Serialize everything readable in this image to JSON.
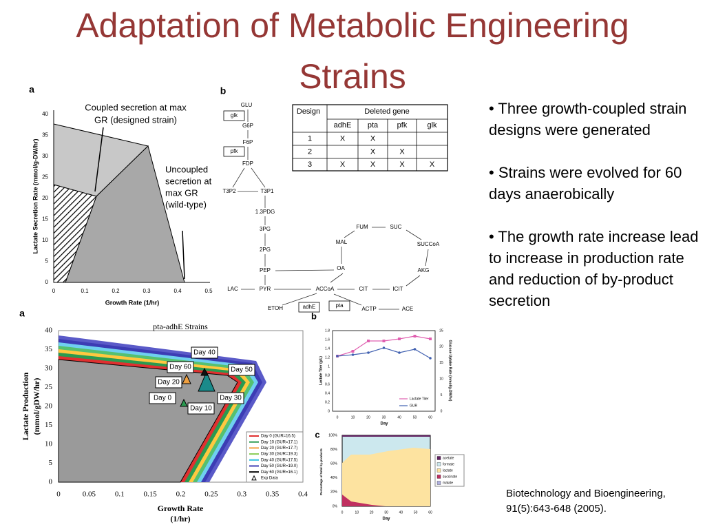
{
  "title": "Adaptation of Metabolic Engineering Strains",
  "bullets": [
    "Three growth-coupled strain designs were generated",
    "Strains were evolved for 60 days anaerobically",
    "The growth rate increase lead to increase in production rate and reduction of by-product secretion"
  ],
  "citation": "Biotechnology and Bioengineering, 91(5):643-648 (2005).",
  "fig_top_a": {
    "label": "a",
    "annotation_coupled": [
      "Coupled secretion at max",
      "GR (designed strain)"
    ],
    "annotation_uncoupled": [
      "Uncoupled",
      "secretion at",
      "max GR",
      "(wild-type)"
    ],
    "xlabel": "Growth Rate (1/hr)",
    "ylabel": "Lactate Secretion Rate (mmol/g-DW/hr)",
    "xticks": [
      0,
      0.1,
      0.2,
      0.3,
      0.4,
      0.5
    ],
    "yticks": [
      0,
      5,
      10,
      15,
      20,
      25,
      30,
      35,
      40
    ]
  },
  "fig_top_b": {
    "label": "b",
    "nodes": [
      "GLU",
      "glk",
      "G6P",
      "F6P",
      "pfk",
      "FDP",
      "T3P2",
      "T3P1",
      "1.3PDG",
      "3PG",
      "2PG",
      "PEP",
      "PYR",
      "LAC",
      "ACCoA",
      "ETOH",
      "adhE",
      "pta",
      "ACTP",
      "ACE",
      "OA",
      "MAL",
      "FUM",
      "SUC",
      "SUCCoA",
      "AKG",
      "ICIT",
      "CIT"
    ]
  },
  "table": {
    "header": [
      "Design",
      "Deleted gene"
    ],
    "genes": [
      "adhE",
      "pta",
      "pfk",
      "glk"
    ],
    "rows": [
      [
        "1",
        "X",
        "X",
        null,
        null
      ],
      [
        "2",
        null,
        "X",
        "X",
        null
      ],
      [
        "3",
        "X",
        "X",
        "X",
        "X"
      ]
    ]
  },
  "fig_bottom_a": {
    "label": "a",
    "title": "pta-adhE Strains",
    "xlabel": [
      "Growth Rate",
      "(1/hr)"
    ],
    "ylabel": [
      "Lactate Production",
      "(mmol/gDW/hr)"
    ],
    "xticks": [
      0,
      0.05,
      0.1,
      0.15,
      0.2,
      0.25,
      0.3,
      0.35,
      0.4
    ],
    "yticks": [
      0,
      5,
      10,
      15,
      20,
      25,
      30,
      35,
      40
    ],
    "day_labels": [
      "Day 40",
      "Day 60",
      "Day 50",
      "Day 20",
      "Day 0",
      "Day 30",
      "Day 10"
    ],
    "legend": [
      "Day 0 (GUR=16.5)",
      "Day 10 (GUR=17.1)",
      "Day 20 (GUR=17.7)",
      "Day 30 (GUR=19.3)",
      "Day 40 (GUR=17.5)",
      "Day 50 (GUR=19.0)",
      "Day 60 (GUR=16.1)",
      "Exp Data"
    ]
  },
  "fig_bottom_b": {
    "label": "b",
    "ylabel_left": "Lactate Titer (g/L)",
    "ylabel_right": "Glucose Uptake Rate (mmol/g-DW/hr)",
    "xlabel": "Day",
    "yticks_left": [
      0,
      0.2,
      0.4,
      0.6,
      0.8,
      1,
      1.2,
      1.4,
      1.6,
      1.8
    ],
    "yticks_right": [
      0,
      5,
      10,
      15,
      20,
      25
    ],
    "xticks": [
      0,
      10,
      20,
      30,
      40,
      50,
      60
    ],
    "legend": [
      "Lactate Titer",
      "GUR"
    ]
  },
  "fig_bottom_c": {
    "label": "c",
    "ylabel": "Percentage of total by-products",
    "xlabel": "Day",
    "yticks": [
      "0%",
      "20%",
      "40%",
      "60%",
      "80%",
      "100%"
    ],
    "xticks": [
      0,
      10,
      20,
      30,
      40,
      50,
      60
    ],
    "legend": [
      "acetate",
      "formate",
      "lactate",
      "succinate",
      "malate"
    ]
  }
}
